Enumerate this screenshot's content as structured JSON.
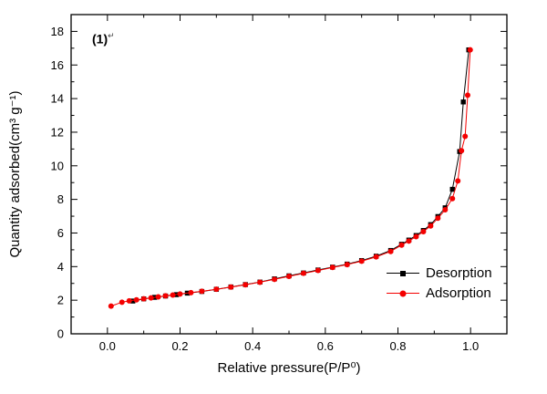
{
  "figure": {
    "annotation": "(1)",
    "annotation_mark": "↵"
  },
  "chart_data": {
    "type": "line",
    "title": "",
    "xlabel": "Relative pressure(P/P⁰)",
    "ylabel": "Quantity adsorbed(cm³ g⁻¹)",
    "xlim": [
      -0.1,
      1.1
    ],
    "ylim": [
      0,
      19
    ],
    "grid": false,
    "legend_position": "inside-bottom-right",
    "x_major_ticks": [
      0.0,
      0.2,
      0.4,
      0.6,
      0.8,
      1.0
    ],
    "x_tick_labels": [
      "0.0",
      "0.2",
      "0.4",
      "0.6",
      "0.8",
      "1.0"
    ],
    "x_minor_step": 0.1,
    "y_major_ticks": [
      0,
      2,
      4,
      6,
      8,
      10,
      12,
      14,
      16,
      18
    ],
    "y_tick_labels": [
      "0",
      "2",
      "4",
      "6",
      "8",
      "10",
      "12",
      "14",
      "16",
      "18"
    ],
    "y_minor_step": 1,
    "series": [
      {
        "name": "Desorption",
        "color": "#000000",
        "marker": "square",
        "points": [
          [
            0.07,
            1.95
          ],
          [
            0.1,
            2.08
          ],
          [
            0.13,
            2.17
          ],
          [
            0.16,
            2.25
          ],
          [
            0.19,
            2.33
          ],
          [
            0.22,
            2.42
          ],
          [
            0.26,
            2.52
          ],
          [
            0.3,
            2.65
          ],
          [
            0.34,
            2.79
          ],
          [
            0.38,
            2.93
          ],
          [
            0.42,
            3.08
          ],
          [
            0.46,
            3.27
          ],
          [
            0.5,
            3.45
          ],
          [
            0.54,
            3.62
          ],
          [
            0.58,
            3.8
          ],
          [
            0.62,
            3.97
          ],
          [
            0.66,
            4.15
          ],
          [
            0.7,
            4.36
          ],
          [
            0.74,
            4.62
          ],
          [
            0.78,
            4.96
          ],
          [
            0.81,
            5.33
          ],
          [
            0.83,
            5.58
          ],
          [
            0.85,
            5.85
          ],
          [
            0.87,
            6.15
          ],
          [
            0.89,
            6.5
          ],
          [
            0.91,
            6.98
          ],
          [
            0.93,
            7.5
          ],
          [
            0.95,
            8.6
          ],
          [
            0.97,
            10.85
          ],
          [
            0.98,
            13.8
          ],
          [
            0.995,
            16.9
          ]
        ]
      },
      {
        "name": "Adsorption",
        "color": "#f40000",
        "marker": "circle",
        "points": [
          [
            0.01,
            1.65
          ],
          [
            0.04,
            1.88
          ],
          [
            0.06,
            1.96
          ],
          [
            0.08,
            2.02
          ],
          [
            0.1,
            2.08
          ],
          [
            0.12,
            2.14
          ],
          [
            0.14,
            2.2
          ],
          [
            0.16,
            2.26
          ],
          [
            0.18,
            2.31
          ],
          [
            0.2,
            2.37
          ],
          [
            0.23,
            2.45
          ],
          [
            0.26,
            2.53
          ],
          [
            0.3,
            2.65
          ],
          [
            0.34,
            2.78
          ],
          [
            0.38,
            2.92
          ],
          [
            0.42,
            3.07
          ],
          [
            0.46,
            3.24
          ],
          [
            0.5,
            3.42
          ],
          [
            0.54,
            3.6
          ],
          [
            0.58,
            3.77
          ],
          [
            0.62,
            3.95
          ],
          [
            0.66,
            4.12
          ],
          [
            0.7,
            4.32
          ],
          [
            0.74,
            4.58
          ],
          [
            0.78,
            4.9
          ],
          [
            0.81,
            5.28
          ],
          [
            0.83,
            5.52
          ],
          [
            0.85,
            5.78
          ],
          [
            0.87,
            6.08
          ],
          [
            0.89,
            6.42
          ],
          [
            0.91,
            6.88
          ],
          [
            0.93,
            7.38
          ],
          [
            0.95,
            8.05
          ],
          [
            0.965,
            9.1
          ],
          [
            0.975,
            10.9
          ],
          [
            0.985,
            11.75
          ],
          [
            0.992,
            14.2
          ],
          [
            0.999,
            16.9
          ]
        ]
      }
    ]
  }
}
